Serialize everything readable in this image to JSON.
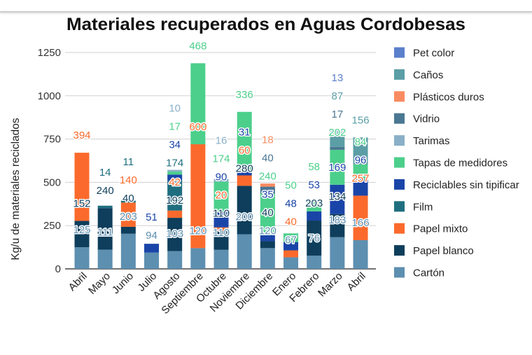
{
  "chart_data": {
    "type": "bar",
    "stacked": true,
    "title": "Materiales recuperados en Aguas Cordobesas",
    "xlabel": "",
    "ylabel": "Kg/u de materiales reciclados",
    "ylim": [
      0,
      1250
    ],
    "yticks": [
      0,
      250,
      500,
      750,
      1000,
      1250
    ],
    "grid": true,
    "legend_position": "right",
    "categories": [
      "Abril",
      "Mayo",
      "Junio",
      "Julio",
      "Agosto",
      "Septiembre",
      "Octubre",
      "Noviembre",
      "Diciembre",
      "Enero",
      "Febrero",
      "Marzo",
      "Abril"
    ],
    "series": [
      {
        "name": "Pet color",
        "color": "#5b7fcb",
        "values": [
          null,
          null,
          null,
          null,
          null,
          null,
          null,
          null,
          null,
          null,
          null,
          13,
          null
        ]
      },
      {
        "name": "Caños",
        "color": "#5b9ea6",
        "values": [
          null,
          null,
          null,
          null,
          null,
          null,
          null,
          null,
          null,
          null,
          null,
          87,
          156
        ]
      },
      {
        "name": "Plásticos duros",
        "color": "#f98b60",
        "values": [
          null,
          null,
          null,
          null,
          null,
          null,
          null,
          null,
          18,
          null,
          null,
          null,
          null
        ]
      },
      {
        "name": "Vidrio",
        "color": "#4a7792",
        "values": [
          null,
          null,
          null,
          null,
          null,
          null,
          null,
          null,
          40,
          null,
          null,
          17,
          null
        ]
      },
      {
        "name": "Tarimas",
        "color": "#8ab0c8",
        "values": [
          null,
          null,
          null,
          null,
          10,
          null,
          16,
          null,
          null,
          null,
          null,
          null,
          null
        ]
      },
      {
        "name": "Tapas de medidores",
        "color": "#4ccf8b",
        "values": [
          null,
          null,
          null,
          null,
          17,
          468,
          174,
          336,
          240,
          50,
          58,
          202,
          84
        ]
      },
      {
        "name": "Reciclables sin tipificar",
        "color": "#1a45a8",
        "values": [
          null,
          null,
          null,
          51,
          34,
          null,
          90,
          31,
          35,
          48,
          53,
          169,
          96
        ]
      },
      {
        "name": "Film",
        "color": "#1f6e7f",
        "values": [
          null,
          14,
          11,
          null,
          174,
          null,
          null,
          null,
          null,
          null,
          null,
          null,
          null
        ]
      },
      {
        "name": "Papel mixto",
        "color": "#fb6a2c",
        "values": [
          394,
          null,
          140,
          null,
          42,
          600,
          20,
          60,
          null,
          40,
          null,
          null,
          257
        ]
      },
      {
        "name": "Papel blanco",
        "color": "#0e3e5b",
        "values": [
          152,
          240,
          40,
          null,
          192,
          null,
          110,
          280,
          40,
          null,
          203,
          134,
          null
        ]
      },
      {
        "name": "Cartón",
        "color": "#5d8fb0",
        "values": [
          125,
          111,
          203,
          94,
          103,
          120,
          110,
          200,
          120,
          67,
          76,
          183,
          166
        ]
      }
    ]
  }
}
